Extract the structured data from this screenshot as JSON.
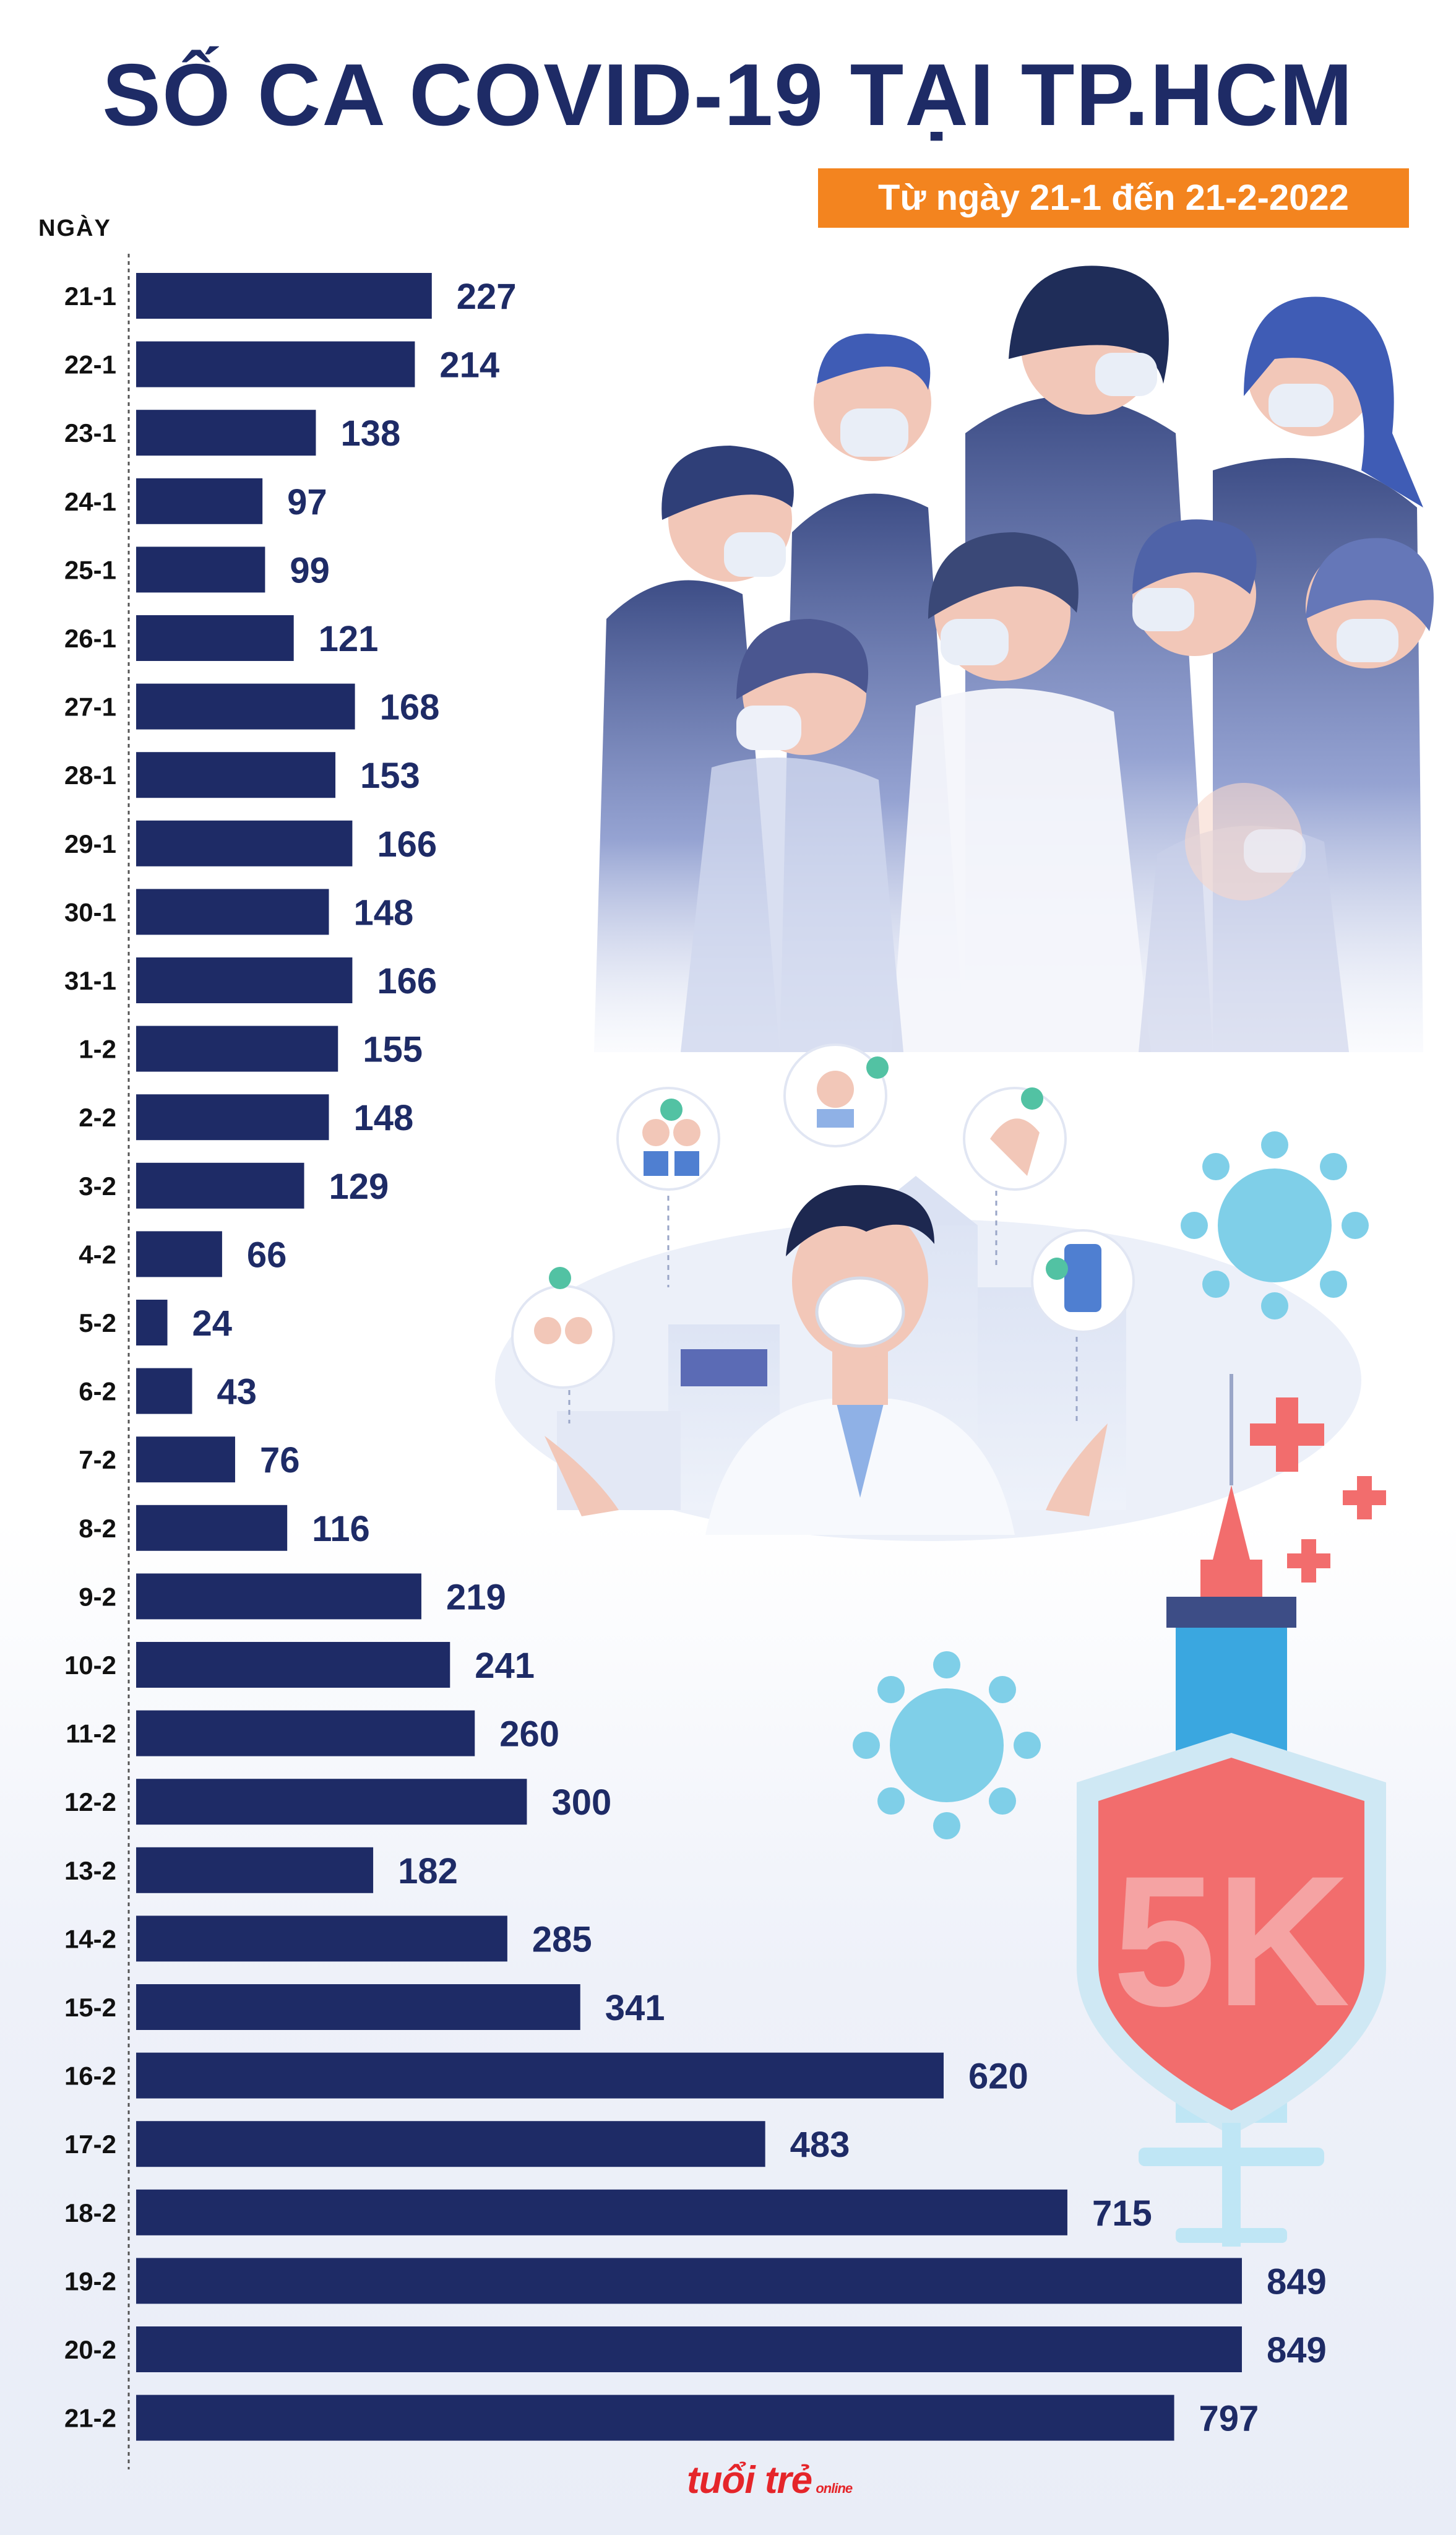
{
  "title": "SỐ CA COVID-19 TẠI TP.HCM",
  "subtitle": "Từ ngày 21-1 đến 21-2-2022",
  "logo": {
    "main": "tuổi trẻ",
    "sub": "online"
  },
  "illustration": {
    "shield_text": "5K"
  },
  "colors": {
    "bar": "#1e2b66",
    "label": "#1e2b66",
    "accent": "#f3841f"
  },
  "chart_data": {
    "type": "bar",
    "orientation": "horizontal",
    "title": "SỐ CA COVID-19 TẠI TP.HCM",
    "subtitle": "Từ ngày 21-1 đến 21-2-2022",
    "ylabel": "NGÀY",
    "categories": [
      "21-1",
      "22-1",
      "23-1",
      "24-1",
      "25-1",
      "26-1",
      "27-1",
      "28-1",
      "29-1",
      "30-1",
      "31-1",
      "1-2",
      "2-2",
      "3-2",
      "4-2",
      "5-2",
      "6-2",
      "7-2",
      "8-2",
      "9-2",
      "10-2",
      "11-2",
      "12-2",
      "13-2",
      "14-2",
      "15-2",
      "16-2",
      "17-2",
      "18-2",
      "19-2",
      "20-2",
      "21-2"
    ],
    "values": [
      227,
      214,
      138,
      97,
      99,
      121,
      168,
      153,
      166,
      148,
      166,
      155,
      148,
      129,
      66,
      24,
      43,
      76,
      116,
      219,
      241,
      260,
      300,
      182,
      285,
      341,
      620,
      483,
      715,
      849,
      849,
      797
    ],
    "xlim": [
      0,
      849
    ],
    "data_labels": true,
    "grid": false
  }
}
